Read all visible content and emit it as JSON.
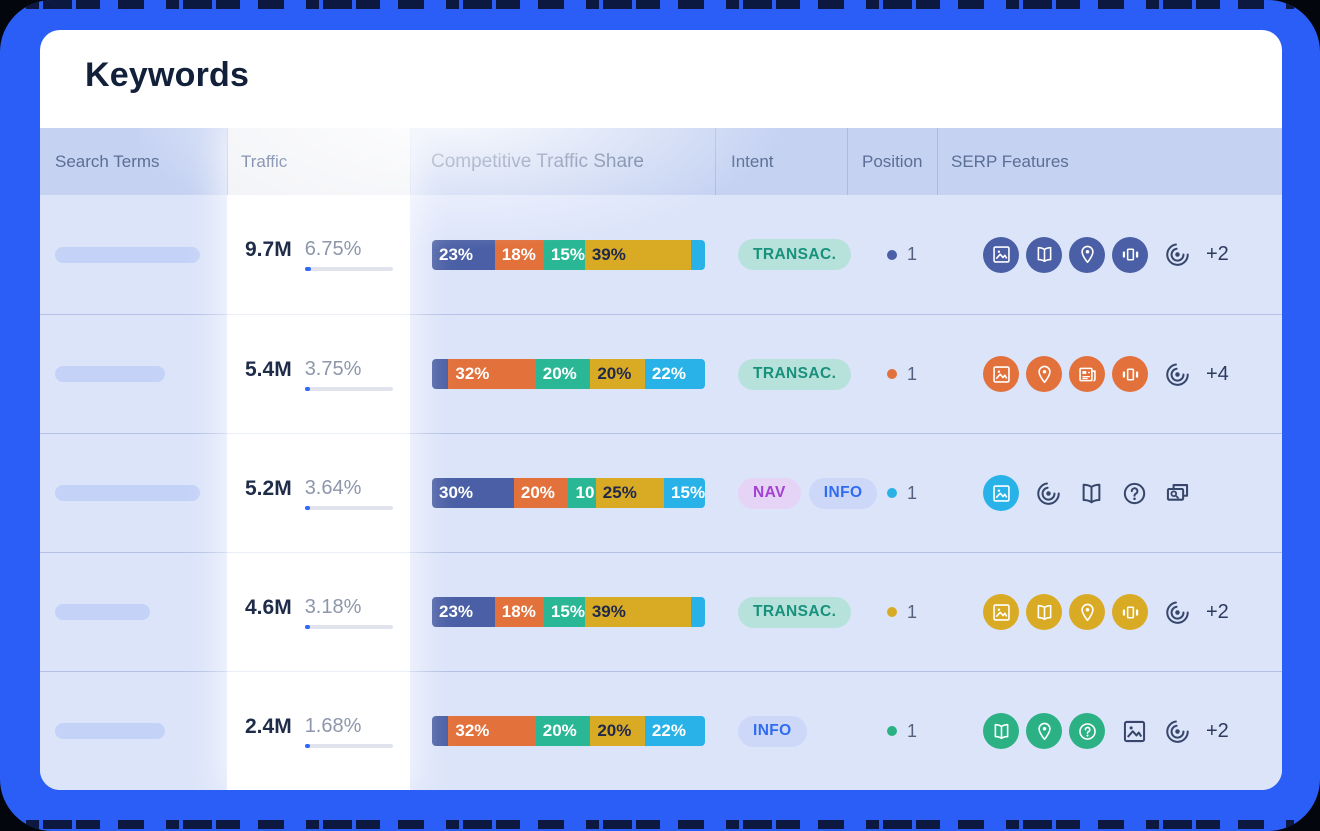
{
  "page_title": "Keywords",
  "colors": {
    "indigo": "#4a5fa5",
    "orange": "#e2713c",
    "teal": "#2ab795",
    "gold": "#d9ab25",
    "cyan": "#29b2e8",
    "green": "#2cb184",
    "frame_blue": "#2b5ef6",
    "traffic_bar_blue": "#2f6bf6"
  },
  "intent_styles": {
    "transactional": {
      "bg": "#b7e2db",
      "text": "#17917c"
    },
    "nav": {
      "bg": "#e5d4f6",
      "text": "#a341d2"
    },
    "info": {
      "bg": "#cdd8f9",
      "text": "#2f6cf0"
    }
  },
  "table": {
    "columns": [
      "Search Terms",
      "Traffic",
      "Competitive Traffic Share",
      "Intent",
      "Position",
      "SERP Features"
    ],
    "rows": [
      {
        "search_term_placeholder_width": 145,
        "traffic": "9.7M",
        "traffic_share_pct": "6.75%",
        "traffic_share_value": 6.75,
        "competitive_share": [
          {
            "pct": 23,
            "label": "23%",
            "color": "indigo"
          },
          {
            "pct": 18,
            "label": "18%",
            "color": "orange"
          },
          {
            "pct": 15,
            "label": "15%",
            "color": "teal"
          },
          {
            "pct": 39,
            "label": "39%",
            "color": "gold"
          },
          {
            "pct": 5,
            "label": "",
            "color": "cyan"
          }
        ],
        "intents": [
          {
            "label": "TRANSAC.",
            "type": "transactional"
          }
        ],
        "position": {
          "value": "1",
          "color": "indigo"
        },
        "serp_features": {
          "filled_color": "indigo",
          "filled_icons": [
            "image",
            "book",
            "location",
            "carousel"
          ],
          "outline_icons": [
            "spiral"
          ],
          "more": "+2"
        }
      },
      {
        "search_term_placeholder_width": 110,
        "traffic": "5.4M",
        "traffic_share_pct": "3.75%",
        "traffic_share_value": 3.75,
        "competitive_share": [
          {
            "pct": 6,
            "label": "",
            "color": "indigo"
          },
          {
            "pct": 32,
            "label": "32%",
            "color": "orange"
          },
          {
            "pct": 20,
            "label": "20%",
            "color": "teal"
          },
          {
            "pct": 20,
            "label": "20%",
            "color": "gold"
          },
          {
            "pct": 22,
            "label": "22%",
            "color": "cyan"
          }
        ],
        "intents": [
          {
            "label": "TRANSAC.",
            "type": "transactional"
          }
        ],
        "position": {
          "value": "1",
          "color": "orange"
        },
        "serp_features": {
          "filled_color": "orange",
          "filled_icons": [
            "image",
            "location",
            "news",
            "carousel"
          ],
          "outline_icons": [
            "spiral"
          ],
          "more": "+4"
        }
      },
      {
        "search_term_placeholder_width": 145,
        "traffic": "5.2M",
        "traffic_share_pct": "3.64%",
        "traffic_share_value": 3.64,
        "competitive_share": [
          {
            "pct": 30,
            "label": "30%",
            "color": "indigo"
          },
          {
            "pct": 20,
            "label": "20%",
            "color": "orange"
          },
          {
            "pct": 10,
            "label": "10",
            "color": "teal"
          },
          {
            "pct": 25,
            "label": "25%",
            "color": "gold"
          },
          {
            "pct": 15,
            "label": "15%",
            "color": "cyan"
          }
        ],
        "intents": [
          {
            "label": "NAV",
            "type": "nav"
          },
          {
            "label": "INFO",
            "type": "info"
          }
        ],
        "position": {
          "value": "1",
          "color": "cyan"
        },
        "serp_features": {
          "filled_color": "cyan",
          "filled_icons": [
            "image"
          ],
          "outline_icons": [
            "spiral",
            "book",
            "question",
            "related"
          ],
          "more": ""
        }
      },
      {
        "search_term_placeholder_width": 95,
        "traffic": "4.6M",
        "traffic_share_pct": "3.18%",
        "traffic_share_value": 3.18,
        "competitive_share": [
          {
            "pct": 23,
            "label": "23%",
            "color": "indigo"
          },
          {
            "pct": 18,
            "label": "18%",
            "color": "orange"
          },
          {
            "pct": 15,
            "label": "15%",
            "color": "teal"
          },
          {
            "pct": 39,
            "label": "39%",
            "color": "gold"
          },
          {
            "pct": 5,
            "label": "",
            "color": "cyan"
          }
        ],
        "intents": [
          {
            "label": "TRANSAC.",
            "type": "transactional"
          }
        ],
        "position": {
          "value": "1",
          "color": "gold"
        },
        "serp_features": {
          "filled_color": "gold",
          "filled_icons": [
            "image",
            "book",
            "location",
            "carousel"
          ],
          "outline_icons": [
            "spiral"
          ],
          "more": "+2"
        }
      },
      {
        "search_term_placeholder_width": 110,
        "traffic": "2.4M",
        "traffic_share_pct": "1.68%",
        "traffic_share_value": 1.68,
        "competitive_share": [
          {
            "pct": 6,
            "label": "",
            "color": "indigo"
          },
          {
            "pct": 32,
            "label": "32%",
            "color": "orange"
          },
          {
            "pct": 20,
            "label": "20%",
            "color": "teal"
          },
          {
            "pct": 20,
            "label": "20%",
            "color": "gold"
          },
          {
            "pct": 22,
            "label": "22%",
            "color": "cyan"
          }
        ],
        "intents": [
          {
            "label": "INFO",
            "type": "info"
          }
        ],
        "position": {
          "value": "1",
          "color": "green"
        },
        "serp_features": {
          "filled_color": "green",
          "filled_icons": [
            "book",
            "location",
            "question"
          ],
          "outline_icons": [
            "image",
            "spiral"
          ],
          "more": "+2"
        }
      }
    ]
  }
}
